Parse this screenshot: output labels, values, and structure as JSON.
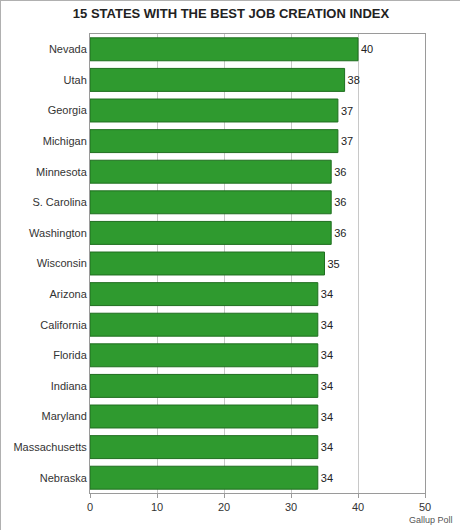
{
  "chart_data": {
    "type": "bar",
    "title": "15 STATES WITH THE BEST JOB CREATION INDEX",
    "orientation": "horizontal",
    "categories": [
      "Nevada",
      "Utah",
      "Georgia",
      "Michigan",
      "Minnesota",
      "S. Carolina",
      "Washington",
      "Wisconsin",
      "Arizona",
      "California",
      "Florida",
      "Indiana",
      "Maryland",
      "Massachusetts",
      "Nebraska"
    ],
    "values": [
      40,
      38,
      37,
      37,
      36,
      36,
      36,
      35,
      34,
      34,
      34,
      34,
      34,
      34,
      34
    ],
    "color": "#2f9a2f",
    "xlim": [
      0,
      50
    ],
    "xticks": [
      0,
      10,
      20,
      30,
      40,
      50
    ],
    "grid": true,
    "data_labels": true,
    "source": "Gallup Poll"
  }
}
